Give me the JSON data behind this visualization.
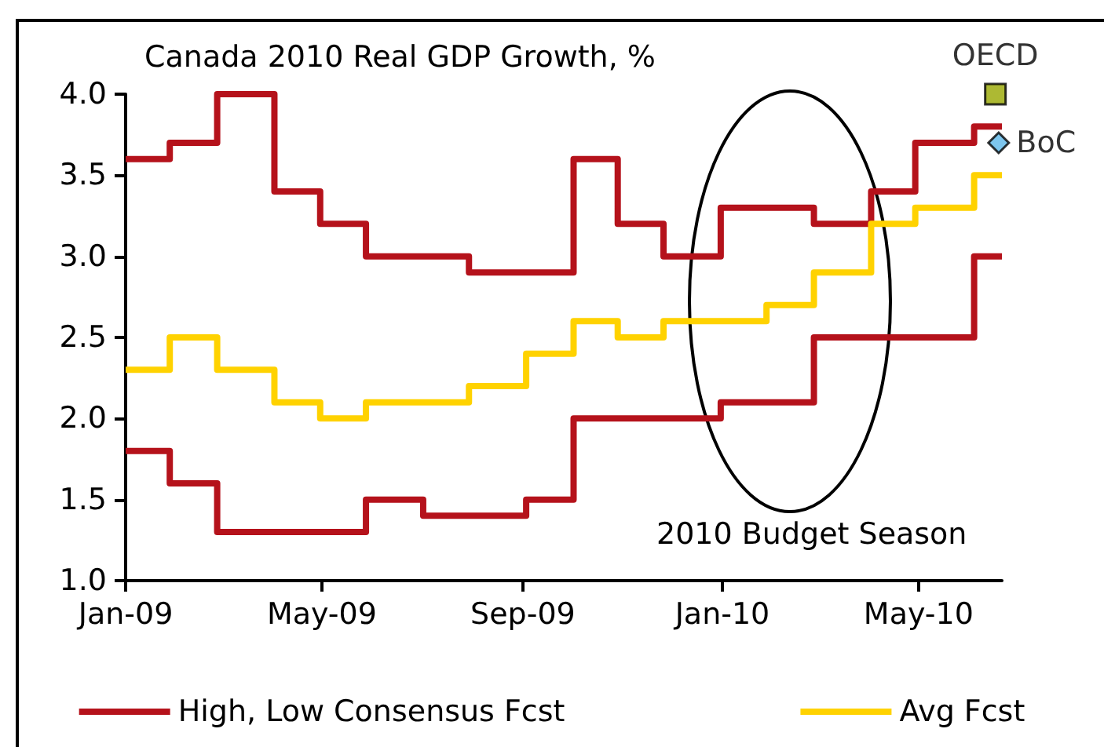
{
  "chart_data": {
    "type": "step",
    "title": "Canada 2010 Real GDP Growth, %",
    "annotations": [
      "2010 Budget Season"
    ],
    "xlim": [
      "2009-01-01",
      "2010-06-21"
    ],
    "xticks": [
      {
        "value": "2009-01-01",
        "label": "Jan-09"
      },
      {
        "value": "2009-05-01",
        "label": "May-09"
      },
      {
        "value": "2009-09-01",
        "label": "Sep-09"
      },
      {
        "value": "2010-01-01",
        "label": "Jan-10"
      },
      {
        "value": "2010-05-01",
        "label": "May-10"
      }
    ],
    "ylim": [
      1,
      4
    ],
    "yticks": [
      {
        "value": 1,
        "label": "1.0"
      },
      {
        "value": 1.5,
        "label": "1.5"
      },
      {
        "value": 2,
        "label": "2.0"
      },
      {
        "value": 2.5,
        "label": "2.5"
      },
      {
        "value": 3,
        "label": "3.0"
      },
      {
        "value": 3.5,
        "label": "3.5"
      },
      {
        "value": 4,
        "label": "4.0"
      }
    ],
    "grid": false,
    "legend": "bottom",
    "marker": "none",
    "line_style": "solid",
    "series": [
      {
        "name": "High, Low Consensus Fcst",
        "color": "#b5121b",
        "x": [
          "2009-01-01",
          "2009-01-28",
          "2009-02-26",
          "2009-04-02",
          "2009-04-30",
          "2009-05-28",
          "2009-07-30",
          "2009-10-02",
          "2009-10-29",
          "2009-11-26",
          "2009-12-31",
          "2010-02-26",
          "2010-04-02",
          "2010-04-29",
          "2010-06-04",
          "2010-06-21"
        ],
        "values": [
          3.6,
          3.7,
          4.0,
          3.4,
          3.2,
          3.0,
          2.9,
          3.6,
          3.2,
          3.0,
          3.3,
          3.2,
          3.4,
          3.7,
          3.8,
          3.8
        ]
      },
      {
        "color": "#b5121b",
        "x": [
          "2009-01-01",
          "2009-01-28",
          "2009-02-26",
          "2009-05-28",
          "2009-07-02",
          "2009-09-03",
          "2009-10-02",
          "2009-12-31",
          "2010-02-26",
          "2010-06-04",
          "2010-06-21"
        ],
        "values": [
          1.8,
          1.6,
          1.3,
          1.5,
          1.4,
          1.5,
          2.0,
          2.1,
          2.5,
          3.0,
          3.0
        ]
      },
      {
        "name": "Avg Fcst",
        "color": "#ffd200",
        "x": [
          "2009-01-01",
          "2009-01-28",
          "2009-02-26",
          "2009-04-02",
          "2009-04-30",
          "2009-05-28",
          "2009-07-30",
          "2009-09-03",
          "2009-10-02",
          "2009-10-29",
          "2009-11-26",
          "2010-01-28",
          "2010-02-26",
          "2010-04-02",
          "2010-04-29",
          "2010-06-04",
          "2010-06-21"
        ],
        "values": [
          2.3,
          2.5,
          2.3,
          2.1,
          2.0,
          2.1,
          2.2,
          2.4,
          2.6,
          2.5,
          2.6,
          2.7,
          2.9,
          3.2,
          3.3,
          3.5,
          3.5
        ]
      },
      {
        "name": "OECD",
        "type": "scatter",
        "marker": "square",
        "color": "#99a800",
        "x": [
          "2010-06-17"
        ],
        "values": [
          4.0
        ]
      },
      {
        "name": "BoC",
        "type": "scatter",
        "marker": "diamond",
        "color": "#5db8ea",
        "x": [
          "2010-06-19"
        ],
        "values": [
          3.7
        ]
      }
    ]
  }
}
